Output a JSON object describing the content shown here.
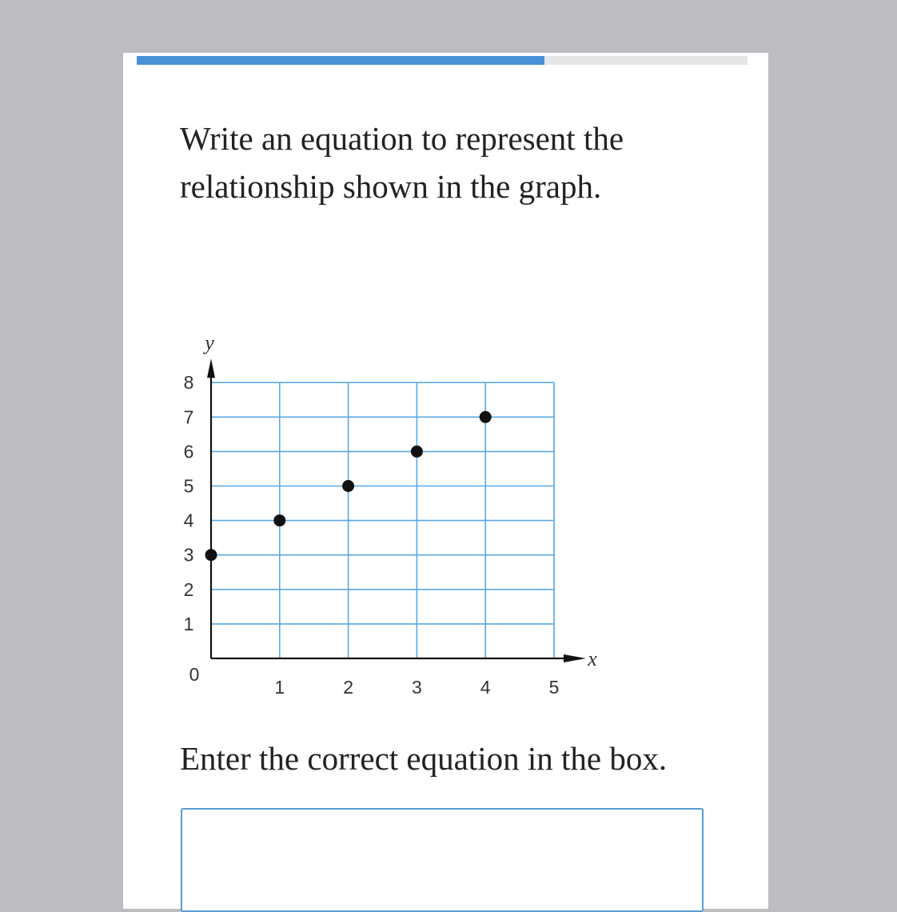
{
  "progress": {
    "value": 0.667,
    "fill_color": "#4a90d6",
    "track_color": "#e6e6e6"
  },
  "question": "Write an equation to represent the relationship shown in the graph.",
  "prompt": "Enter the correct equation in the box.",
  "answer": {
    "value": "",
    "placeholder": ""
  },
  "chart_data": {
    "type": "scatter",
    "title": "",
    "xlabel": "x",
    "ylabel": "y",
    "xlim": [
      0,
      5
    ],
    "ylim": [
      0,
      8
    ],
    "xticks": [
      "1",
      "2",
      "3",
      "4",
      "5"
    ],
    "yticks": [
      "1",
      "2",
      "3",
      "4",
      "5",
      "6",
      "7",
      "8"
    ],
    "origin_label": "0",
    "grid": true,
    "grid_color": "#5aa9e6",
    "points": [
      {
        "x": 0,
        "y": 3
      },
      {
        "x": 1,
        "y": 4
      },
      {
        "x": 2,
        "y": 5
      },
      {
        "x": 3,
        "y": 6
      },
      {
        "x": 4,
        "y": 7
      }
    ]
  }
}
